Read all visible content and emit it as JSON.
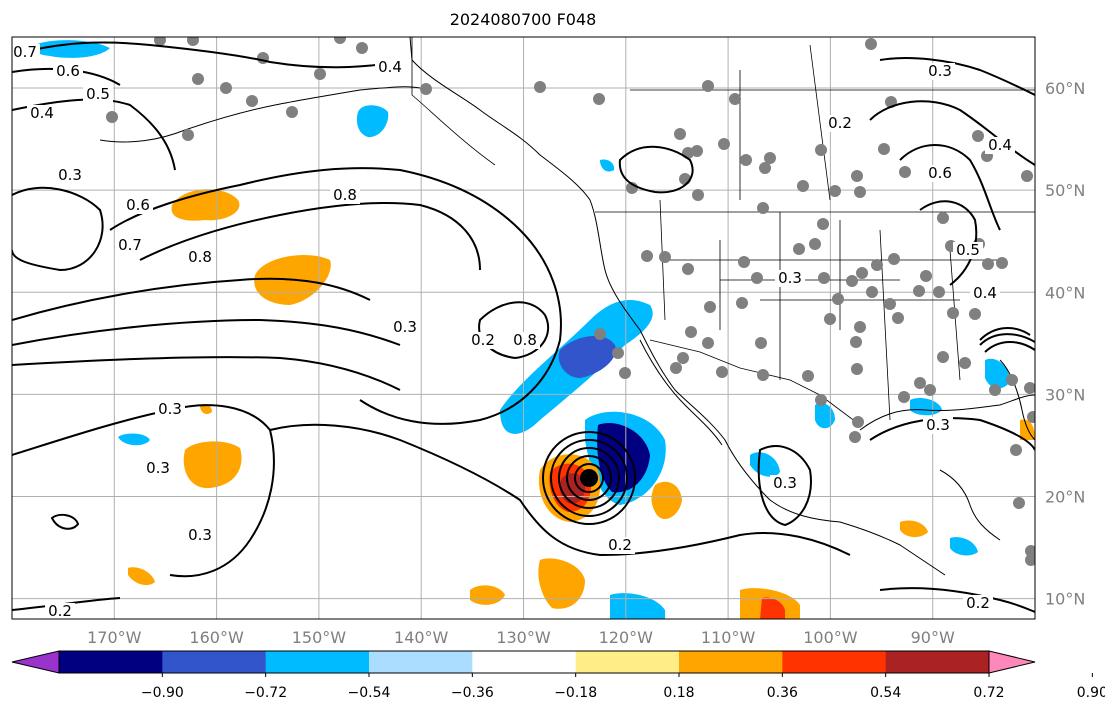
{
  "title": "2024080700 F048",
  "lat_labels": [
    {
      "text": "60°N",
      "lat": 60
    },
    {
      "text": "50°N",
      "lat": 50
    },
    {
      "text": "40°N",
      "lat": 40
    },
    {
      "text": "30°N",
      "lat": 30
    },
    {
      "text": "20°N",
      "lat": 20
    },
    {
      "text": "10°N",
      "lat": 10
    }
  ],
  "lon_labels": [
    {
      "text": "170°W",
      "lon": -170
    },
    {
      "text": "160°W",
      "lon": -160
    },
    {
      "text": "150°W",
      "lon": -150
    },
    {
      "text": "140°W",
      "lon": -140
    },
    {
      "text": "130°W",
      "lon": -130
    },
    {
      "text": "120°W",
      "lon": -120
    },
    {
      "text": "110°W",
      "lon": -110
    },
    {
      "text": "100°W",
      "lon": -100
    },
    {
      "text": "90°W",
      "lon": -90
    }
  ],
  "map_extent": {
    "lon_min": -180,
    "lon_max": -80,
    "lat_min": 8,
    "lat_max": 65
  },
  "colorbar": {
    "under_color": "#9933cc",
    "over_color": "#ff88bb",
    "colors": [
      "#000080",
      "#3355cc",
      "#00bbff",
      "#aaddff",
      "#ffffff",
      "#ffee88",
      "#ffa500",
      "#ff3300",
      "#aa2222"
    ],
    "tick_labels": [
      "−0.90",
      "−0.72",
      "−0.54",
      "−0.36",
      "−0.18",
      "0.18",
      "0.36",
      "0.54",
      "0.72",
      "0.90"
    ]
  },
  "contour_labels": [
    "0.7",
    "0.6",
    "0.5",
    "0.4",
    "0.3",
    "0.6",
    "0.7",
    "0.8",
    "0.8",
    "0.4",
    "0.3",
    "0.3",
    "0.3",
    "0.3",
    "0.2",
    "0.2",
    "0.3",
    "0.3",
    "0.2",
    "0.3",
    "0.6",
    "0.5",
    "0.4",
    "0.3",
    "0.2",
    "0.8",
    "0.4",
    "0.2"
  ],
  "colors": {
    "contour": "#000000",
    "grid": "#b0b0b0",
    "coast": "#000000",
    "station": "#808080",
    "center_marker": "#000000"
  }
}
